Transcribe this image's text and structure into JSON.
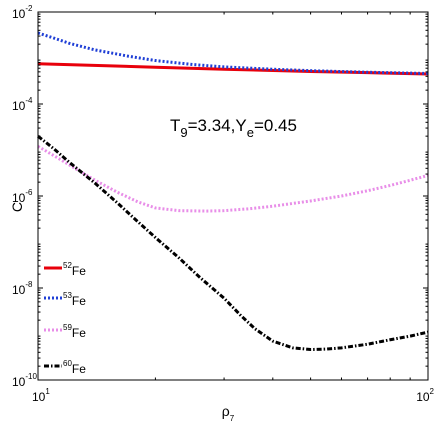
{
  "chart_data": {
    "type": "line",
    "xscale": "log",
    "yscale": "log",
    "xlim": [
      10,
      100
    ],
    "ylim": [
      1e-10,
      0.01
    ],
    "xlabel": {
      "base": "ρ",
      "sub": "7"
    },
    "ylabel": "C",
    "x_ticks": [
      {
        "value": 10,
        "base": "10",
        "exp": "1"
      },
      {
        "value": 100,
        "base": "10",
        "exp": "2"
      }
    ],
    "y_ticks": [
      {
        "value": 1e-10,
        "base": "10",
        "exp": "-10"
      },
      {
        "value": 1e-08,
        "base": "10",
        "exp": "-8"
      },
      {
        "value": 1e-06,
        "base": "10",
        "exp": "-6"
      },
      {
        "value": 0.0001,
        "base": "10",
        "exp": "-4"
      },
      {
        "value": 0.01,
        "base": "10",
        "exp": "-2"
      }
    ],
    "annotation": {
      "t": "T",
      "t_sub": "9",
      "t_val": "=3.34,Y",
      "y_sub": "e",
      "y_val": "=0.45"
    },
    "legend_position": "bottom-left",
    "series": [
      {
        "mass": "52",
        "element": "Fe",
        "color": "#e8000b",
        "dash": "solid",
        "width": 3,
        "points": [
          [
            10,
            0.00075
          ],
          [
            15,
            0.00068
          ],
          [
            20,
            0.00063
          ],
          [
            30,
            0.00057
          ],
          [
            50,
            0.00051
          ],
          [
            70,
            0.00048
          ],
          [
            100,
            0.00045
          ]
        ]
      },
      {
        "mass": "53",
        "element": "Fe",
        "color": "#1f3fd6",
        "dash": "dotted",
        "width": 3,
        "points": [
          [
            10,
            0.0035
          ],
          [
            11,
            0.0027
          ],
          [
            12,
            0.0021
          ],
          [
            14,
            0.0015
          ],
          [
            17,
            0.0011
          ],
          [
            20,
            0.00088
          ],
          [
            25,
            0.00072
          ],
          [
            30,
            0.00064
          ],
          [
            40,
            0.00057
          ],
          [
            50,
            0.00053
          ],
          [
            70,
            0.00049
          ],
          [
            100,
            0.00046
          ]
        ]
      },
      {
        "mass": "59",
        "element": "Fe",
        "color": "#e88ee8",
        "dash": "dotted",
        "width": 3,
        "points": [
          [
            10,
            1.2e-05
          ],
          [
            11,
            7.5e-06
          ],
          [
            12,
            4.8e-06
          ],
          [
            14,
            2.2e-06
          ],
          [
            16,
            1.2e-06
          ],
          [
            18,
            7.5e-07
          ],
          [
            20,
            5.5e-07
          ],
          [
            23,
            4.8e-07
          ],
          [
            27,
            4.7e-07
          ],
          [
            30,
            4.8e-07
          ],
          [
            35,
            5.3e-07
          ],
          [
            40,
            6e-07
          ],
          [
            50,
            7.8e-07
          ],
          [
            60,
            1e-06
          ],
          [
            70,
            1.3e-06
          ],
          [
            80,
            1.7e-06
          ],
          [
            90,
            2.2e-06
          ],
          [
            100,
            2.8e-06
          ]
        ]
      },
      {
        "mass": "60",
        "element": "Fe",
        "color": "#000000",
        "dash": "dashdot",
        "width": 3,
        "points": [
          [
            10,
            2e-05
          ],
          [
            11,
            1.05e-05
          ],
          [
            12,
            5.5e-06
          ],
          [
            14,
            1.9e-06
          ],
          [
            16,
            7e-07
          ],
          [
            18,
            2.8e-07
          ],
          [
            20,
            1.25e-07
          ],
          [
            23,
            4.5e-08
          ],
          [
            26,
            1.7e-08
          ],
          [
            30,
            6e-09
          ],
          [
            33,
            2.6e-09
          ],
          [
            36,
            1.3e-09
          ],
          [
            40,
            7e-10
          ],
          [
            45,
            5e-10
          ],
          [
            50,
            4.6e-10
          ],
          [
            55,
            4.7e-10
          ],
          [
            60,
            5e-10
          ],
          [
            70,
            6e-10
          ],
          [
            80,
            7.5e-10
          ],
          [
            90,
            9e-10
          ],
          [
            100,
            1.1e-09
          ]
        ]
      }
    ]
  }
}
